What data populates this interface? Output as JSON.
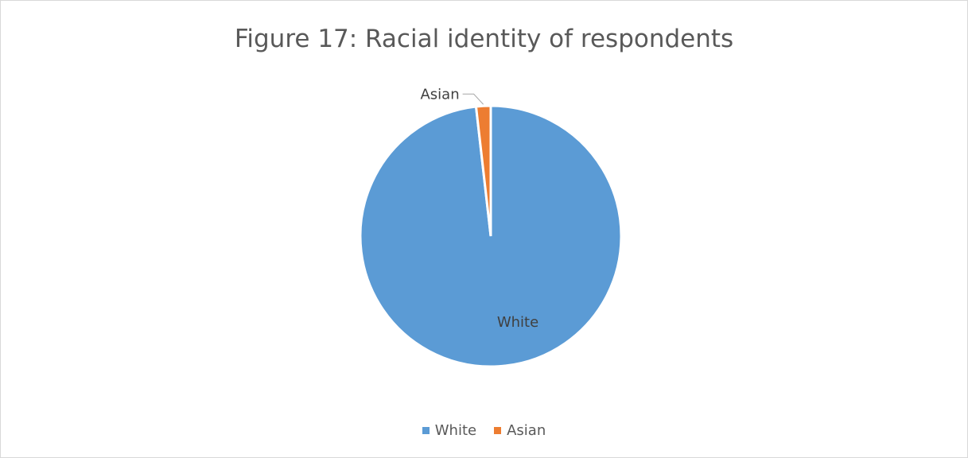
{
  "chart_data": {
    "type": "pie",
    "title": "Figure 17: Racial identity of respondents",
    "categories": [
      "White",
      "Asian"
    ],
    "values": [
      98.2,
      1.8
    ],
    "colors": [
      "#5b9bd5",
      "#ed7d31"
    ],
    "data_labels": [
      "White",
      "Asian"
    ],
    "legend_position": "bottom"
  }
}
